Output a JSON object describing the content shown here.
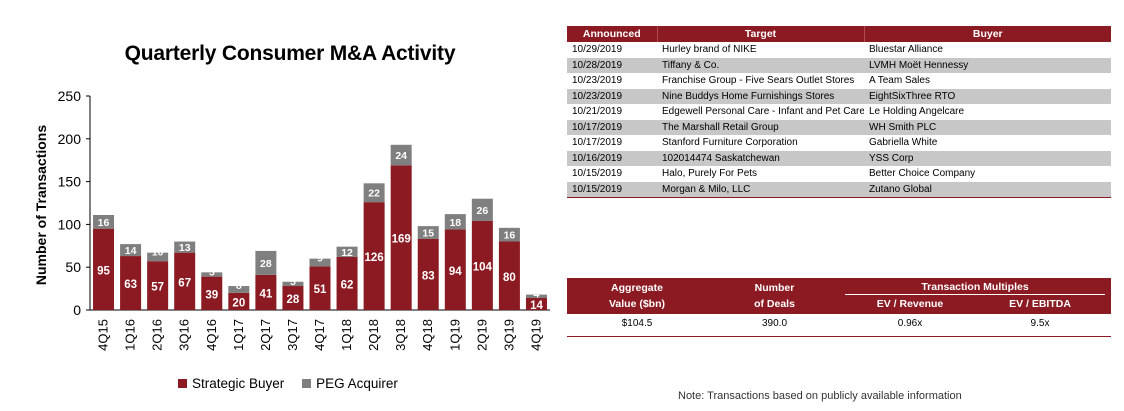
{
  "chart_data": {
    "type": "bar",
    "stacked": true,
    "title": "Quarterly Consumer M&A Activity",
    "xlabel": "",
    "ylabel": "Number of Transactions",
    "ylim": [
      0,
      250
    ],
    "yticks": [
      0,
      50,
      100,
      150,
      200,
      250
    ],
    "categories": [
      "4Q15",
      "1Q16",
      "2Q16",
      "3Q16",
      "4Q16",
      "1Q17",
      "2Q17",
      "3Q17",
      "4Q17",
      "1Q18",
      "2Q18",
      "3Q18",
      "4Q18",
      "1Q19",
      "2Q19",
      "3Q19",
      "4Q19"
    ],
    "series": [
      {
        "name": "Strategic Buyer",
        "color": "#8b1a22",
        "values": [
          95,
          63,
          57,
          67,
          39,
          20,
          41,
          28,
          51,
          62,
          126,
          169,
          83,
          94,
          104,
          80,
          14
        ]
      },
      {
        "name": "PEG Acquirer",
        "color": "#7f7f7f",
        "values": [
          16,
          14,
          10,
          13,
          5,
          8,
          28,
          5,
          9,
          12,
          22,
          24,
          15,
          18,
          26,
          16,
          4
        ]
      }
    ],
    "legend_position": "bottom"
  },
  "deals": {
    "headers": {
      "announced": "Announced",
      "target": "Target",
      "buyer": "Buyer"
    },
    "rows": [
      {
        "date": "10/29/2019",
        "target": "Hurley brand of NIKE",
        "buyer": "Bluestar Alliance"
      },
      {
        "date": "10/28/2019",
        "target": "Tiffany & Co.",
        "buyer": "LVMH Moët Hennessy"
      },
      {
        "date": "10/23/2019",
        "target": "Franchise Group - Five Sears Outlet Stores",
        "buyer": "A Team Sales"
      },
      {
        "date": "10/23/2019",
        "target": "Nine Buddys Home Furnishings Stores",
        "buyer": "EightSixThree RTO"
      },
      {
        "date": "10/21/2019",
        "target": "Edgewell Personal Care - Infant and Pet Care Business",
        "buyer": "Le Holding Angelcare"
      },
      {
        "date": "10/17/2019",
        "target": "The Marshall Retail Group",
        "buyer": "WH Smith PLC"
      },
      {
        "date": "10/17/2019",
        "target": "Stanford Furniture Corporation",
        "buyer": "Gabriella White"
      },
      {
        "date": "10/16/2019",
        "target": "102014474 Saskatchewan",
        "buyer": "YSS Corp"
      },
      {
        "date": "10/15/2019",
        "target": "Halo, Purely For Pets",
        "buyer": "Better Choice Company"
      },
      {
        "date": "10/15/2019",
        "target": "Morgan & Milo, LLC",
        "buyer": "Zutano Global"
      }
    ]
  },
  "summary": {
    "aggregate_line1": "Aggregate",
    "aggregate_line2": "Value ($bn)",
    "deals_line1": "Number",
    "deals_line2": "of Deals",
    "multiples_label": "Transaction Multiples",
    "ev_revenue_label": "EV / Revenue",
    "ev_ebitda_label": "EV / EBITDA",
    "aggregate_value": "$104.5",
    "deals_value": "390.0",
    "ev_revenue_value": "0.96x",
    "ev_ebitda_value": "9.5x"
  },
  "note": "Note: Transactions based on publicly available information"
}
